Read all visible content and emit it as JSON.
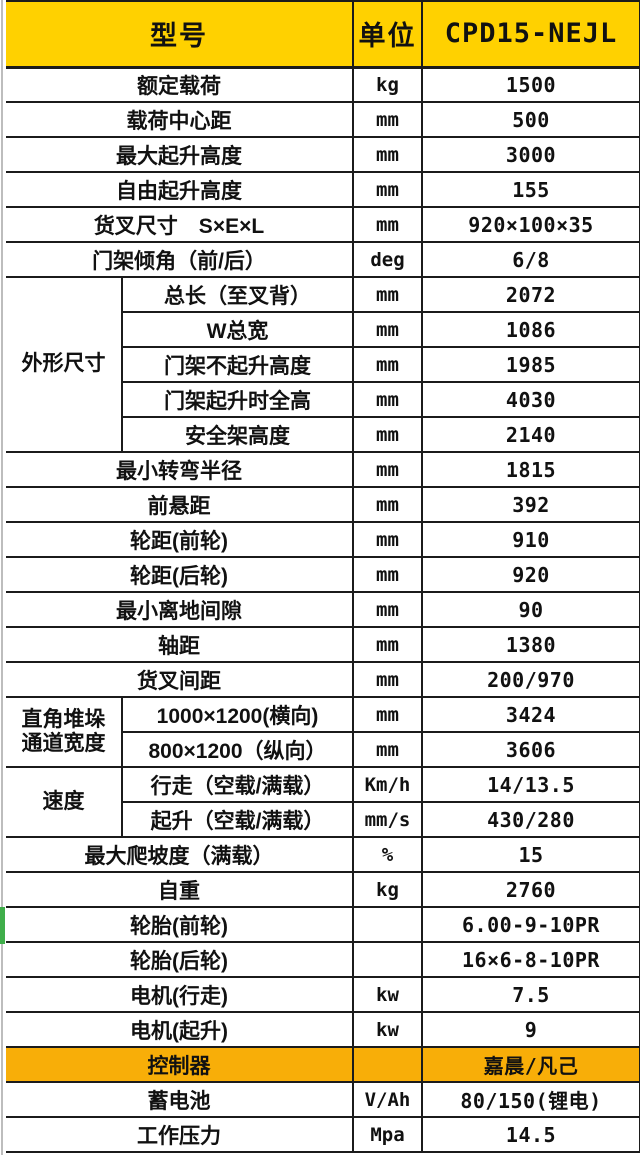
{
  "colors": {
    "header_bg": "#FFD100",
    "highlight_bg": "#F8AE08",
    "green_marker": "#3FAE4A",
    "border": "#1b1b1b",
    "gridline": "#bdbdbd"
  },
  "table": {
    "header": {
      "model_label": "型号",
      "unit_label": "单位",
      "model_value": "CPD15-NEJL"
    },
    "rows": [
      {
        "label": "额定载荷",
        "unit": "kg",
        "value": "1500"
      },
      {
        "label": "载荷中心距",
        "unit": "mm",
        "value": "500"
      },
      {
        "label": "最大起升高度",
        "unit": "mm",
        "value": "3000"
      },
      {
        "label": "自由起升高度",
        "unit": "mm",
        "value": "155"
      },
      {
        "label": "货叉尺寸　S×E×L",
        "unit": "mm",
        "value": "920×100×35"
      },
      {
        "label": "门架倾角（前/后）",
        "unit": "deg",
        "value": "6/8"
      },
      {
        "group": "外形尺寸",
        "group_span": 5,
        "label": "总长（至叉背）",
        "unit": "mm",
        "value": "2072"
      },
      {
        "label": "W总宽",
        "unit": "mm",
        "value": "1086"
      },
      {
        "label": "门架不起升高度",
        "unit": "mm",
        "value": "1985"
      },
      {
        "label": "门架起升时全高",
        "unit": "mm",
        "value": "4030"
      },
      {
        "label": "安全架高度",
        "unit": "mm",
        "value": "2140"
      },
      {
        "label": "最小转弯半径",
        "unit": "mm",
        "value": "1815"
      },
      {
        "label": "前悬距",
        "unit": "mm",
        "value": "392"
      },
      {
        "label": "轮距(前轮)",
        "unit": "mm",
        "value": "910"
      },
      {
        "label": "轮距(后轮)",
        "unit": "mm",
        "value": "920"
      },
      {
        "label": "最小离地间隙",
        "unit": "mm",
        "value": "90"
      },
      {
        "label": "轴距",
        "unit": "mm",
        "value": "1380"
      },
      {
        "label": "货叉间距",
        "unit": "mm",
        "value": "200/970"
      },
      {
        "group": "直角堆垛通道宽度",
        "group_span": 2,
        "label": "1000×1200(横向)",
        "unit": "mm",
        "value": "3424"
      },
      {
        "label": "800×1200（纵向）",
        "unit": "mm",
        "value": "3606"
      },
      {
        "group": "速度",
        "group_span": 2,
        "label": "行走（空载/满载）",
        "unit": "Km/h",
        "value": "14/13.5"
      },
      {
        "label": "起升（空载/满载）",
        "unit": "mm/s",
        "value": "430/280"
      },
      {
        "label": "最大爬坡度（满载）",
        "unit": "%",
        "value": "15"
      },
      {
        "label": "自重",
        "unit": "kg",
        "value": "2760"
      },
      {
        "label": "轮胎(前轮)",
        "unit": "",
        "value": "6.00-9-10PR",
        "green_marker": true
      },
      {
        "label": "轮胎(后轮)",
        "unit": "",
        "value": "16×6-8-10PR"
      },
      {
        "label": "电机(行走)",
        "unit": "kw",
        "value": "7.5"
      },
      {
        "label": "电机(起升)",
        "unit": "kw",
        "value": "9"
      },
      {
        "label": "控制器",
        "unit": "",
        "value": "嘉晨/凡己",
        "highlight": true
      },
      {
        "label": "蓄电池",
        "unit": "V/Ah",
        "value": "80/150(锂电)"
      },
      {
        "label": "工作压力",
        "unit": "Mpa",
        "value": "14.5"
      }
    ]
  }
}
